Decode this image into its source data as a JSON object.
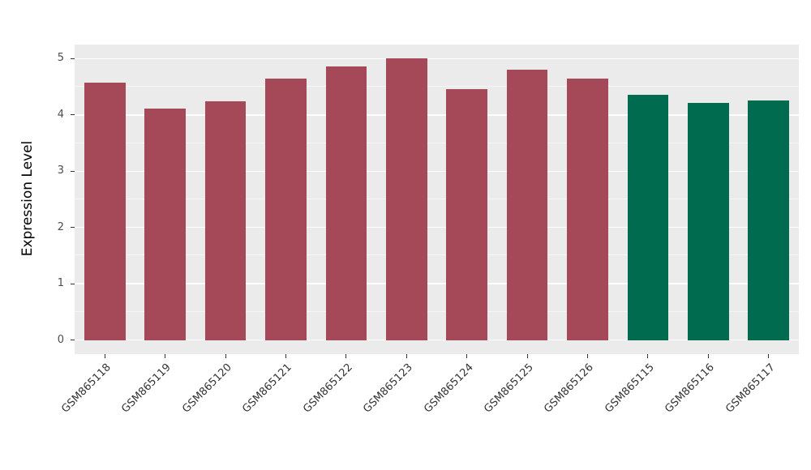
{
  "chart_data": {
    "type": "bar",
    "title": "",
    "ylabel": "Expression Level",
    "xlabel": "",
    "ylim": [
      0,
      5
    ],
    "yticks": [
      0,
      1,
      2,
      3,
      4,
      5
    ],
    "grid": true,
    "legend": false,
    "panel_bg": "#EBEBEB",
    "grid_color": "#FFFFFF",
    "categories": [
      "GSM865118",
      "GSM865119",
      "GSM865120",
      "GSM865121",
      "GSM865122",
      "GSM865123",
      "GSM865124",
      "GSM865125",
      "GSM865126",
      "GSM865115",
      "GSM865116",
      "GSM865117"
    ],
    "values": [
      4.58,
      4.11,
      4.24,
      4.64,
      4.86,
      5.0,
      4.46,
      4.81,
      4.64,
      4.36,
      4.21,
      4.26
    ],
    "bar_colors": [
      "#A54858",
      "#A54858",
      "#A54858",
      "#A54858",
      "#A54858",
      "#A54858",
      "#A54858",
      "#A54858",
      "#A54858",
      "#006B4F",
      "#006B4F",
      "#006B4F"
    ],
    "group_colors": {
      "maroon": "#A54858",
      "green": "#006B4F"
    }
  }
}
